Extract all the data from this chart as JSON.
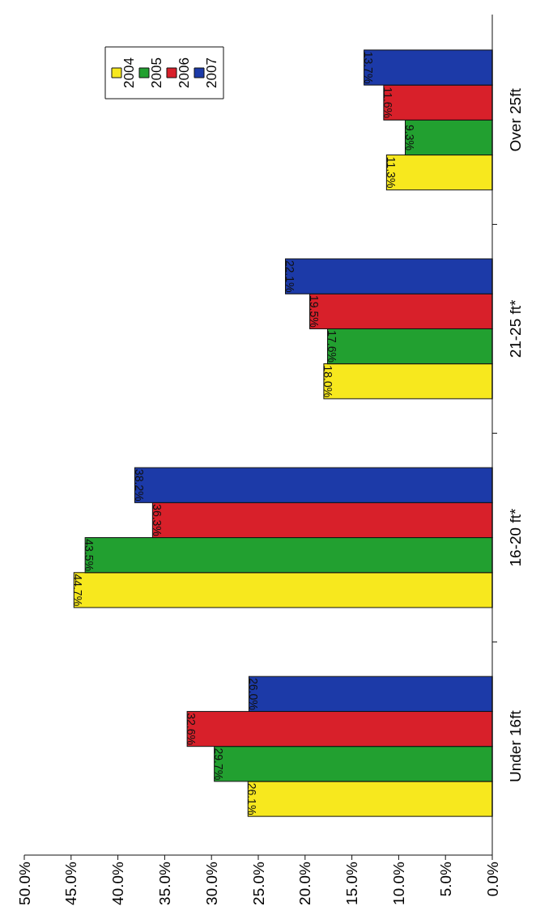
{
  "chart_data": {
    "type": "bar",
    "orientation": "horizontal",
    "categories": [
      "Over 25ft",
      "21-25 ft*",
      "16-20 ft*",
      "Under 16ft"
    ],
    "series": [
      {
        "name": "2004",
        "color": "#f7e81e",
        "values": [
          11.3,
          18.0,
          44.7,
          26.1
        ]
      },
      {
        "name": "2005",
        "color": "#22a030",
        "values": [
          9.3,
          17.6,
          43.5,
          29.7
        ]
      },
      {
        "name": "2006",
        "color": "#d8202a",
        "values": [
          11.6,
          19.5,
          36.3,
          32.6
        ]
      },
      {
        "name": "2007",
        "color": "#1c3aa8",
        "values": [
          13.7,
          22.1,
          38.2,
          26.0
        ]
      }
    ],
    "xlim": [
      50,
      0
    ],
    "xticks": [
      {
        "value": 50,
        "label": "50.0%"
      },
      {
        "value": 45,
        "label": "45.0%"
      },
      {
        "value": 40,
        "label": "40.0%"
      },
      {
        "value": 35,
        "label": "35.0%"
      },
      {
        "value": 30,
        "label": "30.0%"
      },
      {
        "value": 25,
        "label": "25.0%"
      },
      {
        "value": 20,
        "label": "20.0%"
      },
      {
        "value": 15,
        "label": "15.0%"
      },
      {
        "value": 10,
        "label": "10.0%"
      },
      {
        "value": 5,
        "label": "5.0%"
      },
      {
        "value": 0,
        "label": "0.0%"
      }
    ],
    "value_labels": [
      [
        "11.3%",
        "18.0%",
        "44.7%",
        "26.1%"
      ],
      [
        "9.3%",
        "17.6%",
        "43.5%",
        "29.7%"
      ],
      [
        "11.6%",
        "19.5%",
        "36.3%",
        "32.6%"
      ],
      [
        "13.7%",
        "22.1%",
        "38.2%",
        "26.0%"
      ]
    ],
    "legend": "top left",
    "grid": false
  }
}
